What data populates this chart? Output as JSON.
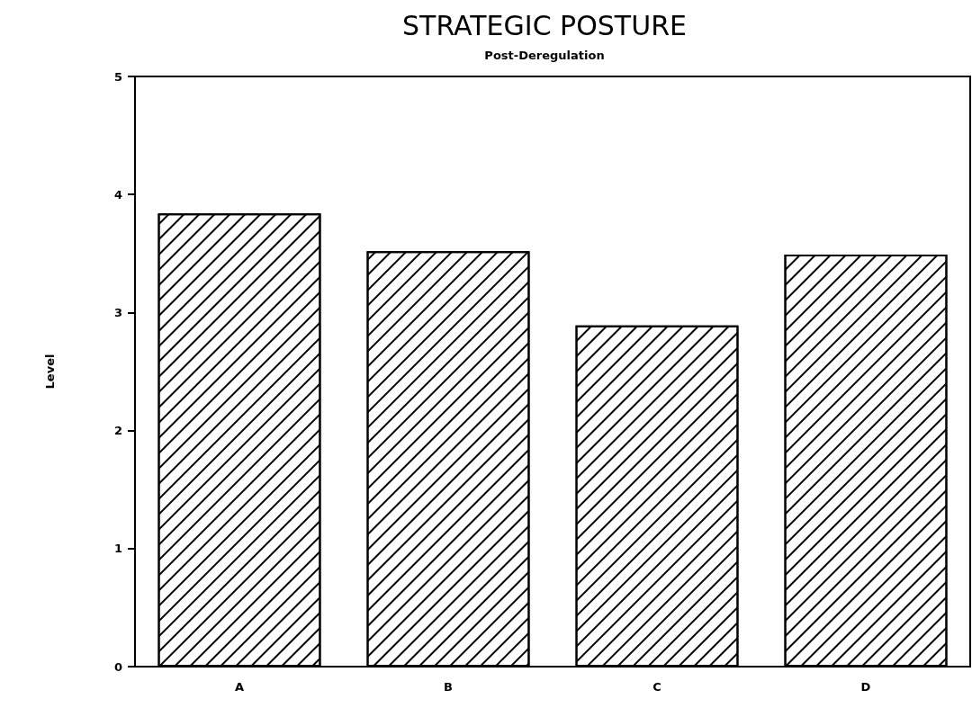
{
  "chart_data": {
    "type": "bar",
    "title": "STRATEGIC POSTURE",
    "subtitle": "Post-Deregulation",
    "ylabel": "Level",
    "categories": [
      "A",
      "B",
      "C",
      "D"
    ],
    "values": [
      3.84,
      3.52,
      2.89,
      3.49
    ],
    "color": "#ffffff",
    "ylim": [
      0,
      5
    ],
    "yticks": [
      0,
      1,
      2,
      3,
      4,
      5
    ],
    "grid": false
  }
}
